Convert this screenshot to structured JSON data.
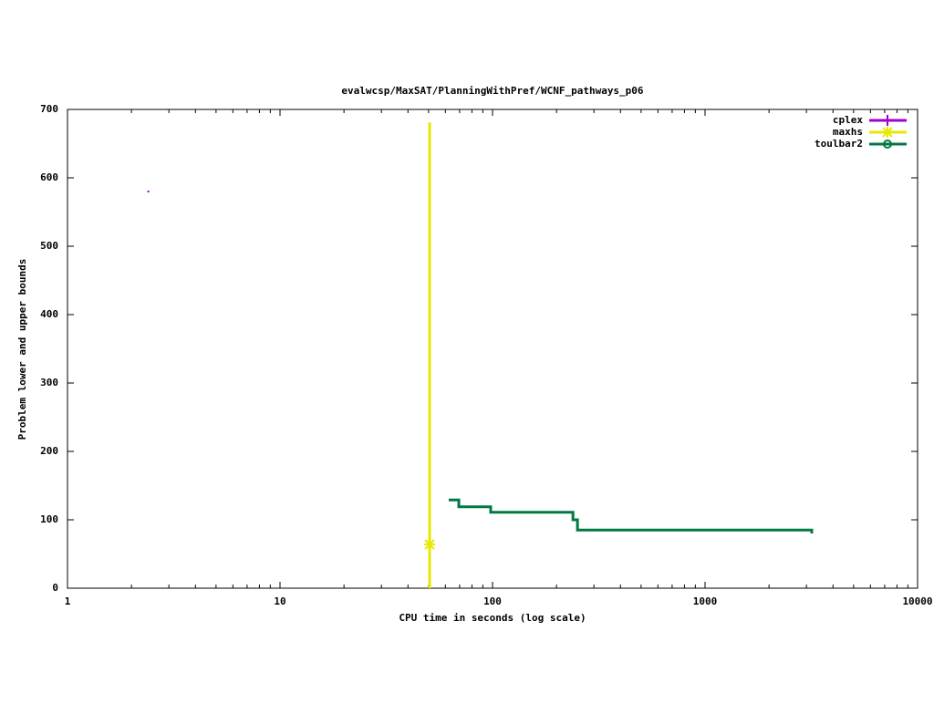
{
  "chart_data": {
    "type": "line",
    "title": "evalwcsp/MaxSAT/PlanningWithPref/WCNF_pathways_p06",
    "x_label": "CPU time in seconds (log scale)",
    "y_label": "Problem lower and upper bounds",
    "x_log": true,
    "xlim": [
      1,
      10000
    ],
    "xticks": [
      1,
      10,
      100,
      1000,
      10000
    ],
    "ylim": [
      0,
      700
    ],
    "yticks": [
      0,
      100,
      200,
      300,
      400,
      500,
      600,
      700
    ],
    "legend": "top-right",
    "series": [
      {
        "name": "cplex",
        "color": "#a000d0",
        "x": [
          2.4
        ],
        "values": [
          580
        ]
      },
      {
        "name": "maxhs",
        "color": "#e8e800",
        "x": [
          50.6,
          50.6,
          50.6
        ],
        "values": [
          681,
          64,
          0
        ]
      },
      {
        "name": "toulbar2",
        "color": "#007a40",
        "x": [
          62.2,
          69.4,
          69.4,
          98,
          98,
          239,
          239,
          251,
          251,
          3178,
          3178
        ],
        "values": [
          129,
          129,
          119,
          119,
          111,
          111,
          100,
          100,
          85,
          85,
          80
        ]
      }
    ]
  }
}
